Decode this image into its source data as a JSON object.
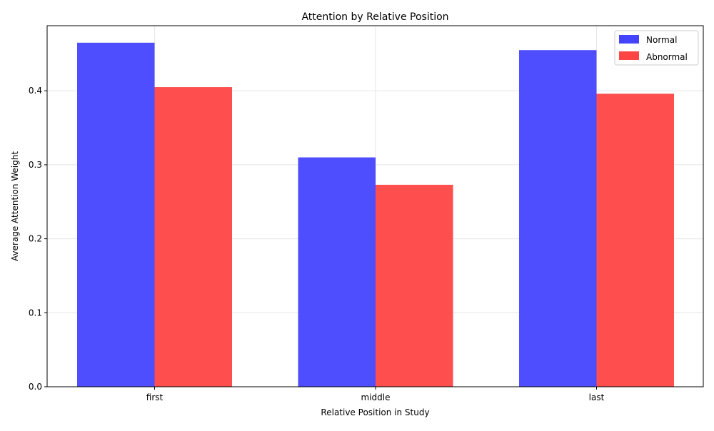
{
  "chart_data": {
    "type": "bar",
    "title": "Attention by Relative Position",
    "xlabel": "Relative Position in Study",
    "ylabel": "Average Attention Weight",
    "categories": [
      "first",
      "middle",
      "last"
    ],
    "series": [
      {
        "name": "Normal",
        "color": "#4444ff",
        "values": [
          0.465,
          0.31,
          0.455
        ]
      },
      {
        "name": "Abnormal",
        "color": "#ff4444",
        "values": [
          0.405,
          0.273,
          0.396
        ]
      }
    ],
    "ylim": [
      0,
      0.488
    ],
    "yticks": [
      "0.0",
      "0.1",
      "0.2",
      "0.3",
      "0.4"
    ],
    "grid": true,
    "legend_position": "top-right"
  }
}
